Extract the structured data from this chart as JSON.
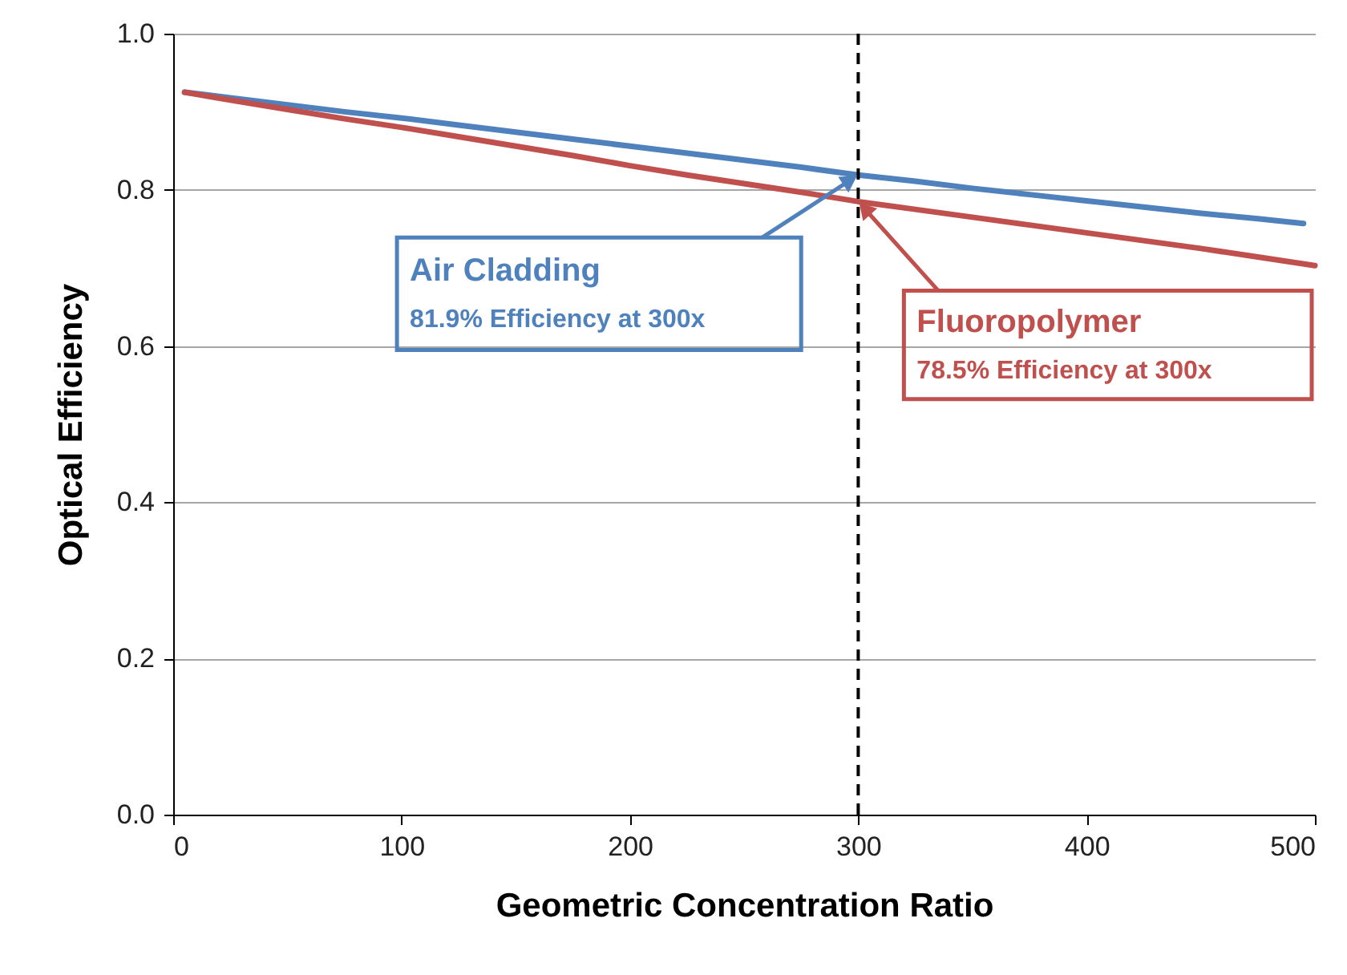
{
  "chart_data": {
    "type": "line",
    "xlabel": "Geometric Concentration Ratio",
    "ylabel": "Optical Efficiency",
    "xlim": [
      0,
      500
    ],
    "xticks": [
      0,
      100,
      200,
      300,
      400,
      500
    ],
    "ylim": [
      0,
      1
    ],
    "yticks": [
      {
        "value": 0,
        "label": "0.0"
      },
      {
        "value": 0.2,
        "label": "0.2"
      },
      {
        "value": 0.4,
        "label": "0.4"
      },
      {
        "value": 0.6,
        "label": "0.6"
      },
      {
        "value": 0.8,
        "label": "0.8"
      },
      {
        "value": 1,
        "label": "1.0"
      }
    ],
    "grid": "y",
    "marker": "none",
    "line_style": "solid",
    "series": [
      {
        "name": "Air Cladding",
        "color": "#4f81bd",
        "x": [
          5,
          25,
          50,
          75,
          100,
          125,
          150,
          175,
          200,
          225,
          250,
          275,
          300,
          325,
          350,
          375,
          400,
          425,
          450,
          475,
          495
        ],
        "values": [
          0.925,
          0.918,
          0.909,
          0.9,
          0.892,
          0.883,
          0.874,
          0.865,
          0.856,
          0.847,
          0.838,
          0.829,
          0.819,
          0.811,
          0.802,
          0.794,
          0.786,
          0.778,
          0.77,
          0.763,
          0.757
        ]
      },
      {
        "name": "Fluoropolymer",
        "color": "#c0504d",
        "x": [
          5,
          25,
          50,
          75,
          100,
          125,
          150,
          175,
          200,
          225,
          250,
          275,
          300,
          325,
          350,
          375,
          400,
          425,
          450,
          475,
          500
        ],
        "values": [
          0.925,
          0.915,
          0.903,
          0.891,
          0.88,
          0.868,
          0.856,
          0.844,
          0.831,
          0.819,
          0.808,
          0.797,
          0.785,
          0.775,
          0.765,
          0.755,
          0.745,
          0.735,
          0.725,
          0.714,
          0.703
        ]
      }
    ],
    "ref_lines": [
      {
        "axis": "x",
        "value": 300,
        "color": "#000000",
        "line_style": "dashed"
      }
    ],
    "annotations": [
      "81.9% Efficiency at 300x",
      "78.5% Efficiency at 300x"
    ]
  }
}
